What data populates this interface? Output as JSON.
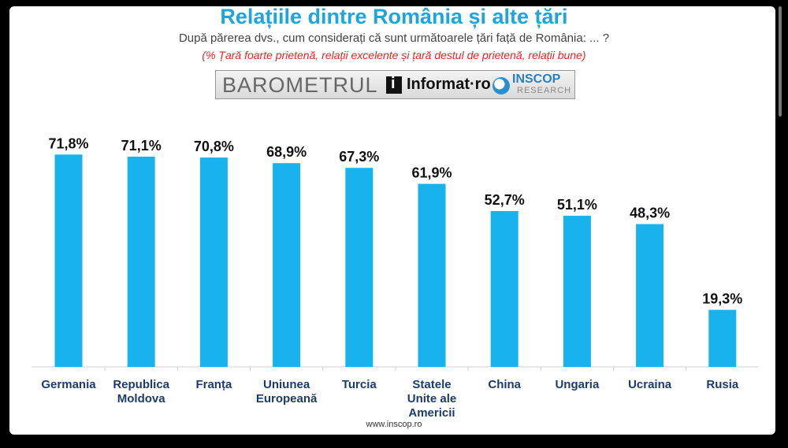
{
  "page": {
    "title": "Relațiile dintre România și alte țări",
    "subtitle": "După părerea dvs., cum considerați că sunt următoarele țări față de România: ... ?",
    "note": "(% Țară foarte prietenă, relații excelente și țară destul de prietenă, relații bune)",
    "footer": "www.inscop.ro"
  },
  "banner": {
    "barometrul": "BAROMETRUL",
    "informat": "Informat·ro",
    "inscop": "INSCOP",
    "research": "RESEARCH"
  },
  "colors": {
    "bar": "#18b2ef",
    "title": "#1ea5de",
    "note": "#e22222"
  },
  "chart_data": {
    "type": "bar",
    "title": "Relațiile dintre România și alte țări",
    "categories": [
      [
        "Germania"
      ],
      [
        "Republica",
        "Moldova"
      ],
      [
        "Franța"
      ],
      [
        "Uniunea",
        "Europeană"
      ],
      [
        "Turcia"
      ],
      [
        "Statele",
        "Unite ale",
        "Americii"
      ],
      [
        "China"
      ],
      [
        "Ungaria"
      ],
      [
        "Ucraina"
      ],
      [
        "Rusia"
      ]
    ],
    "values": [
      71.8,
      71.1,
      70.8,
      68.9,
      67.3,
      61.9,
      52.7,
      51.1,
      48.3,
      19.3
    ],
    "labels": [
      "71,8%",
      "71,1%",
      "70,8%",
      "68,9%",
      "67,3%",
      "61,9%",
      "52,7%",
      "51,1%",
      "48,3%",
      "19,3%"
    ],
    "ylim": [
      0,
      100
    ],
    "grid": false,
    "legend": "none"
  }
}
